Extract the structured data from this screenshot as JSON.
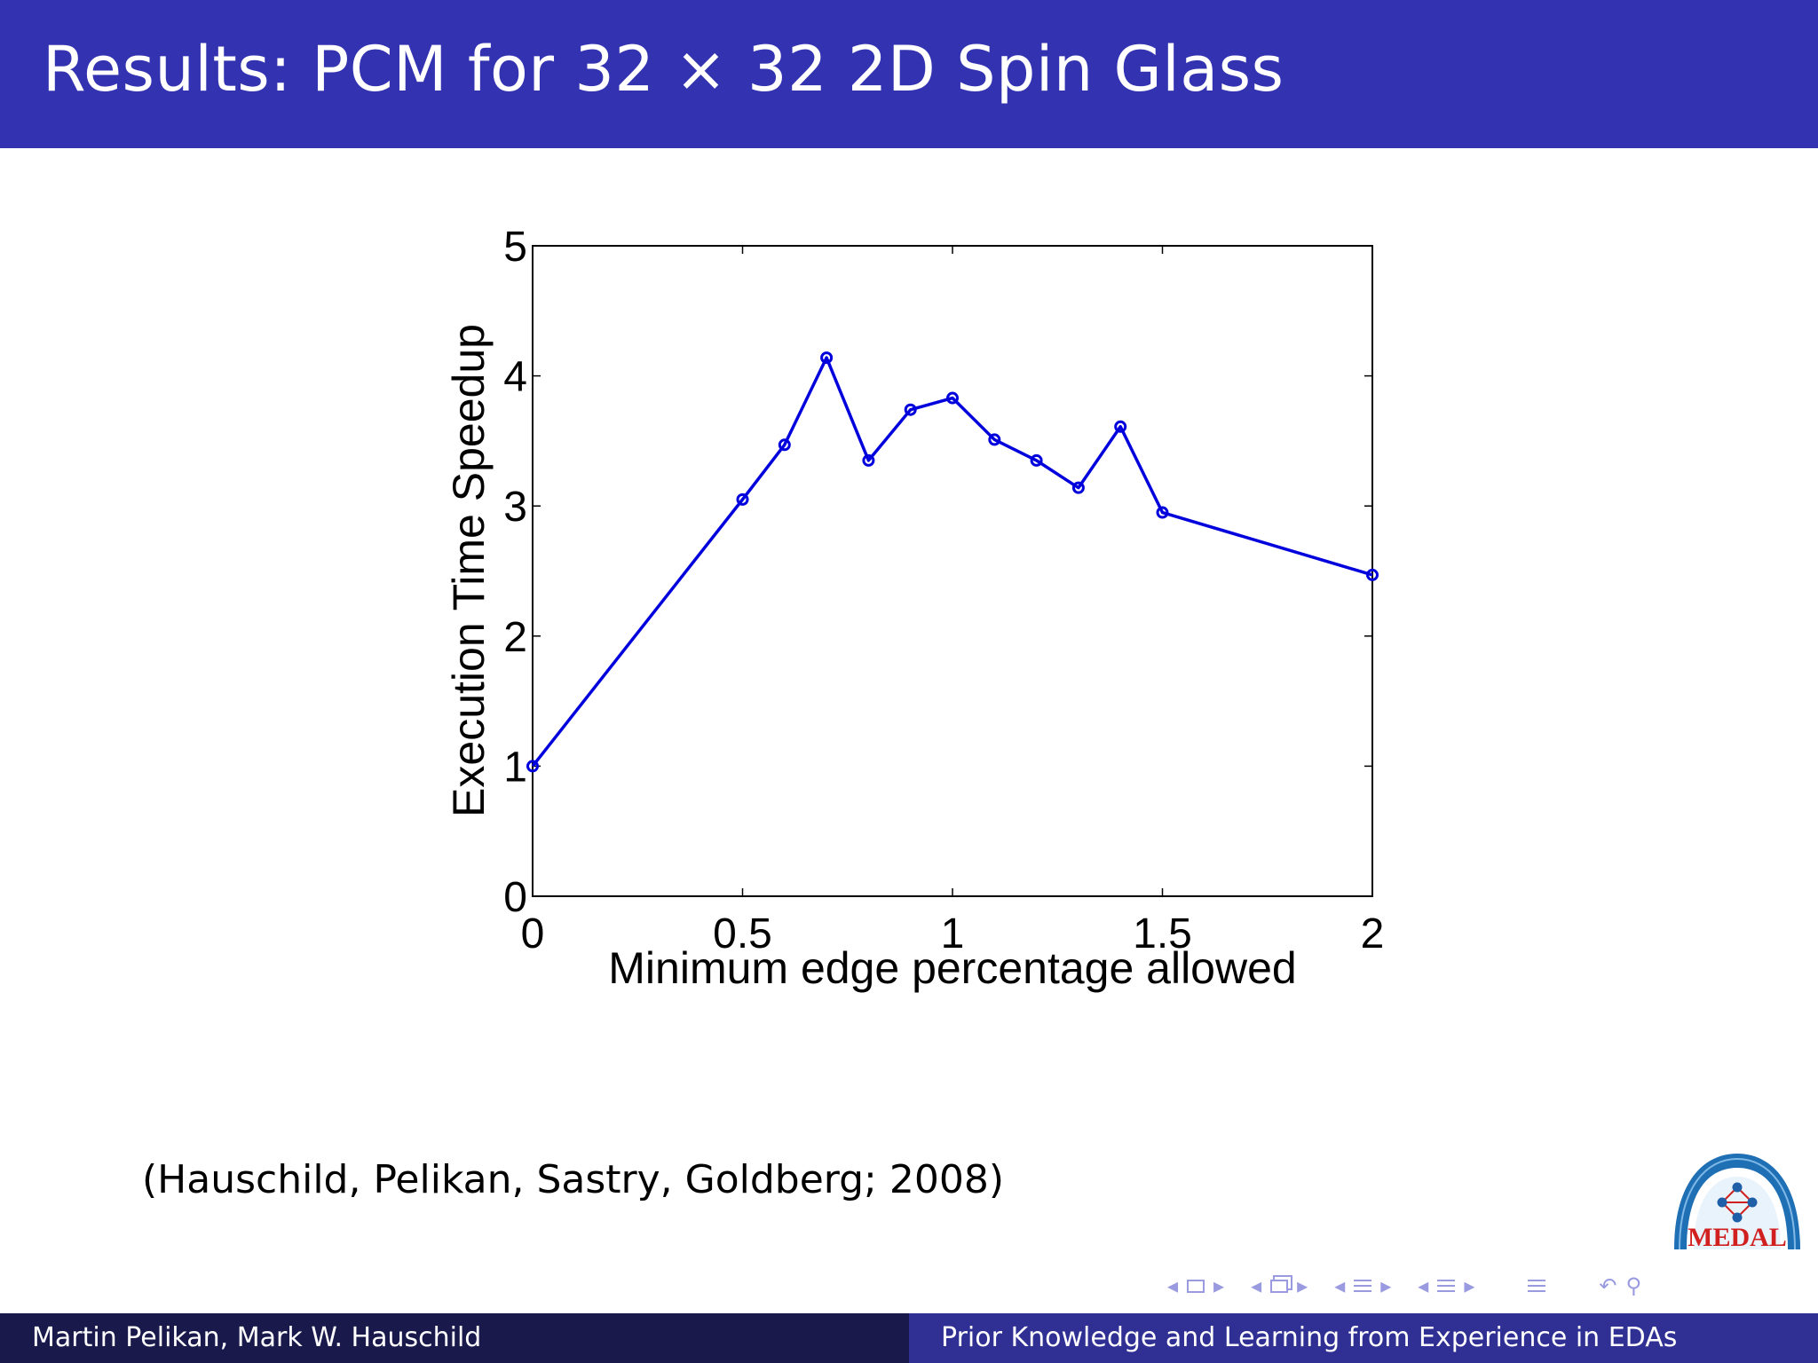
{
  "slide": {
    "title": "Results: PCM for 32 × 32 2D Spin Glass",
    "citation": "(Hauschild, Pelikan, Sastry, Goldberg; 2008)",
    "logo_text": "MEDAL",
    "footer_left": "Martin Pelikan, Mark W. Hauschild",
    "footer_right": "Prior Knowledge and Learning from Experience in EDAs",
    "nav_icons": [
      "arrow-left-icon",
      "frame-icon",
      "arrow-right-icon",
      "arrow-left-icon",
      "subsection-icon",
      "arrow-right-icon",
      "arrow-left-icon",
      "section-icon",
      "arrow-right-icon",
      "arrow-left-icon",
      "section-lines-icon",
      "arrow-right-icon",
      "align-icon",
      "undo-icon",
      "search-icon"
    ],
    "colors": {
      "title_bar": "#3333b2",
      "footer_left": "#191a4b",
      "footer_right": "#2f2f94",
      "series": "#0000dd"
    }
  },
  "chart_data": {
    "type": "line",
    "title": "",
    "xlabel": "Minimum edge percentage allowed",
    "ylabel": "Execution Time Speedup",
    "xlim": [
      0,
      2
    ],
    "ylim": [
      0,
      5
    ],
    "xticks": [
      0,
      0.5,
      1,
      1.5,
      2
    ],
    "xtick_labels": [
      "0",
      "0.5",
      "1",
      "1.5",
      "2"
    ],
    "yticks": [
      0,
      1,
      2,
      3,
      4,
      5
    ],
    "ytick_labels": [
      "0",
      "1",
      "2",
      "3",
      "4",
      "5"
    ],
    "grid": false,
    "marker": "circle",
    "series": [
      {
        "x": [
          0,
          0.5,
          0.6,
          0.7,
          0.8,
          0.9,
          1.0,
          1.1,
          1.2,
          1.3,
          1.4,
          1.5,
          2.0
        ],
        "y": [
          1.0,
          3.05,
          3.47,
          4.14,
          3.35,
          3.74,
          3.83,
          3.51,
          3.35,
          3.14,
          3.61,
          2.95,
          2.47
        ]
      }
    ]
  }
}
